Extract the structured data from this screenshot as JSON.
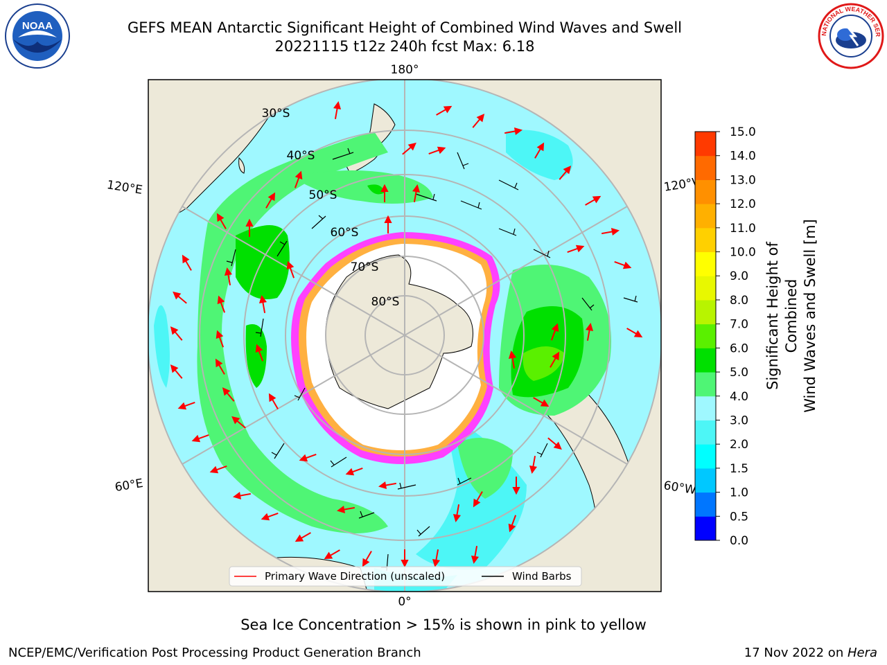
{
  "title": {
    "line1": "GEFS MEAN Antarctic Significant Height of Combined Wind Waves and Swell",
    "line2": "20221115 t12z 240h fcst   Max: 6.18"
  },
  "logos": {
    "left": {
      "name": "noaa-logo",
      "text": "NOAA"
    },
    "right": {
      "name": "nws-logo",
      "text": "NATIONAL WEATHER SERVICE"
    }
  },
  "map": {
    "projection": "south-polar-stereographic",
    "longitude_labels": {
      "top": "180°",
      "bottom": "0°",
      "left_upper": "120°E",
      "left_lower": "60°E",
      "right_upper": "120°W",
      "right_lower": "60°W"
    },
    "latitude_labels": [
      "30°S",
      "40°S",
      "50°S",
      "60°S",
      "70°S",
      "80°S"
    ],
    "legend": {
      "wave_direction": "Primary Wave Direction (unscaled)",
      "wind_barbs": "Wind Barbs"
    },
    "colors": {
      "land": "#ede9d9",
      "ocean_low": "#9ff8ff",
      "ocean_mid": "#4df6f6",
      "swell_high": "#4ff575",
      "swell_max": "#00e000",
      "arrow": "#ff0000",
      "ice": "#ff40ff"
    }
  },
  "colorbar": {
    "label_line1": "Significant Height of Combined",
    "label_line2": "Wind Waves and Swell [m]",
    "ticks": [
      "0.0",
      "0.5",
      "1.0",
      "1.5",
      "2.0",
      "3.0",
      "4.0",
      "5.0",
      "6.0",
      "7.0",
      "8.0",
      "9.0",
      "10.0",
      "11.0",
      "12.0",
      "13.0",
      "14.0",
      "15.0"
    ],
    "colors": [
      "#0000ff",
      "#0076ff",
      "#00c8ff",
      "#00ffff",
      "#4df6f6",
      "#9ff8ff",
      "#4ff575",
      "#00e000",
      "#5af000",
      "#b8f400",
      "#e8f800",
      "#ffff00",
      "#ffd000",
      "#ffb000",
      "#ff9000",
      "#ff6a00",
      "#ff3a00",
      "#ff0000"
    ]
  },
  "subtitle": "Sea Ice Concentration > 15% is shown in pink to yellow",
  "footer": {
    "left": "NCEP/EMC/Verification Post Processing Product Generation Branch",
    "right_date": "17 Nov 2022 on ",
    "right_host": "Hera"
  }
}
